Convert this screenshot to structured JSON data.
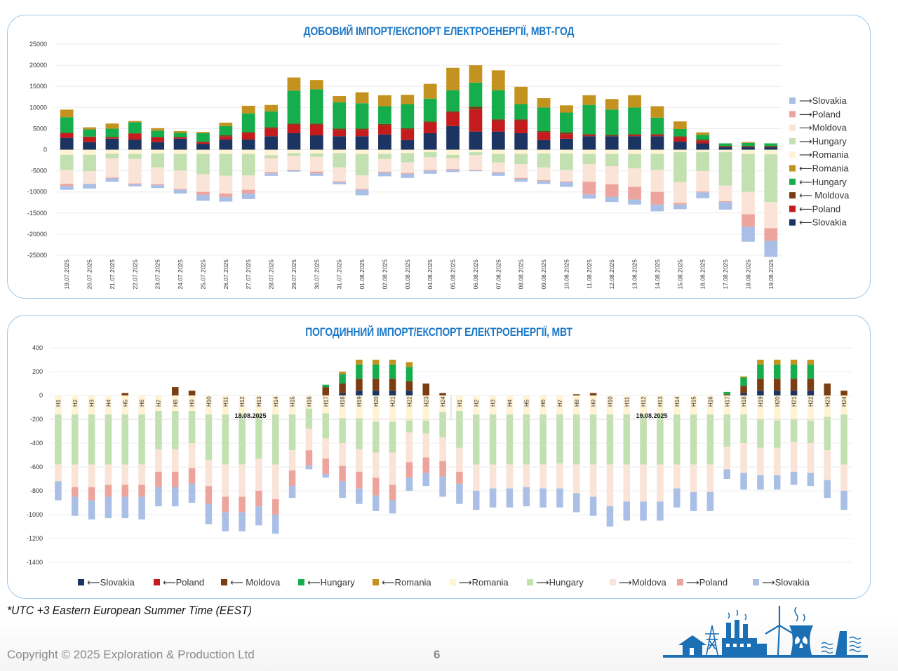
{
  "series_colors": {
    "to_slovakia": "#a9bfe6",
    "to_poland": "#eda49c",
    "to_moldova": "#fae3d7",
    "to_hungary": "#c2e0b0",
    "to_romania": "#fff3d4",
    "from_romania": "#c4921e",
    "from_hungary": "#16ad4d",
    "from_moldova": "#7b3d12",
    "from_poland": "#c41c1c",
    "from_slovakia": "#1b3461"
  },
  "chart_data": [
    {
      "type": "bar",
      "stacked": true,
      "title": "ДОБОВИЙ ІМПОРТ/ЕКСПОРТ ЕЛЕКТРОЕНЕРГІЇ, МВТ-ГОД",
      "ylim": [
        -25000,
        25000
      ],
      "yticks": [
        "25000",
        "20000",
        "15000",
        "10000",
        "5000",
        "0",
        "-5000",
        "-10000",
        "-15000",
        "-20000",
        "-25000"
      ],
      "legend_position": "right",
      "categories": [
        "19.07.2025",
        "20.07.2025",
        "21.07.2025",
        "22.07.2025",
        "23.07.2025",
        "24.07.2025",
        "25.07.2025",
        "26.07.2025",
        "27.07.2025",
        "28.07.2025",
        "29.07.2025",
        "30.07.2025",
        "31.07.2025",
        "01.08.2025",
        "02.08.2025",
        "03.08.2025",
        "04.08.2025",
        "05.08.2025",
        "06.08.2025",
        "07.08.2025",
        "08.08.2025",
        "09.08.2025",
        "10.08.2025",
        "11.08.2025",
        "12.08.2025",
        "13.08.2025",
        "14.08.2025",
        "15.08.2025",
        "16.08.2025",
        "17.08.2025",
        "18.08.2025",
        "19.08.2025"
      ],
      "legend": [
        "⟶Slovakia",
        "⟶Poland",
        "⟶Moldova",
        "⟶Hungary",
        "⟶Romania",
        "⟵Romania",
        "⟵Hungary",
        "⟵ Moldova",
        "⟵Poland",
        "⟵Slovakia"
      ],
      "series": [
        {
          "name": "⟵Slovakia",
          "key": "from_slovakia",
          "values": [
            2800,
            1800,
            2600,
            2400,
            1800,
            2600,
            1400,
            2400,
            2400,
            3200,
            3900,
            3400,
            3200,
            3200,
            3600,
            2300,
            3900,
            5600,
            4300,
            4300,
            3900,
            2300,
            2600,
            3200,
            3200,
            3200,
            3200,
            1900,
            1500,
            600,
            600,
            600
          ]
        },
        {
          "name": "⟵Poland",
          "key": "from_poland",
          "values": [
            1100,
            1200,
            300,
            1400,
            1100,
            300,
            400,
            700,
            1500,
            1800,
            2000,
            2500,
            1500,
            1500,
            2200,
            2500,
            2500,
            3200,
            5200,
            2600,
            3000,
            1800,
            1100,
            200,
            0,
            200,
            200,
            1000,
            600,
            0,
            0,
            0
          ]
        },
        {
          "name": "⟵ Moldova",
          "key": "from_moldova",
          "values": [
            100,
            100,
            100,
            100,
            100,
            100,
            100,
            300,
            300,
            300,
            300,
            300,
            300,
            300,
            300,
            300,
            300,
            300,
            700,
            300,
            300,
            300,
            400,
            300,
            300,
            300,
            300,
            300,
            300,
            300,
            300,
            300
          ]
        },
        {
          "name": "⟵Hungary",
          "key": "from_hungary",
          "values": [
            3700,
            1700,
            2000,
            2600,
            1500,
            1000,
            2000,
            2200,
            4400,
            3800,
            7800,
            8100,
            6200,
            6000,
            4200,
            5700,
            5400,
            5000,
            5700,
            6900,
            3600,
            5600,
            4700,
            6900,
            6000,
            6300,
            3900,
            1700,
            1100,
            600,
            700,
            600
          ]
        },
        {
          "name": "⟵Romania",
          "key": "from_romania",
          "values": [
            1800,
            500,
            1200,
            300,
            600,
            400,
            300,
            800,
            1800,
            1500,
            3100,
            2200,
            1500,
            2600,
            2600,
            2200,
            3500,
            5300,
            4100,
            4700,
            4100,
            2200,
            1700,
            2300,
            2500,
            2900,
            2700,
            1800,
            600,
            0,
            200,
            0
          ]
        },
        {
          "name": "⟶Romania",
          "key": "to_romania",
          "values": [
            -1200,
            -1200,
            -1000,
            -1000,
            -900,
            -1000,
            -1000,
            -1000,
            -1000,
            -1300,
            -800,
            -900,
            -800,
            -1000,
            -1000,
            -800,
            -600,
            -1200,
            -600,
            -1000,
            -1000,
            -900,
            -900,
            -1000,
            -1000,
            -1000,
            -1000,
            -600,
            -600,
            -600,
            -1000,
            -1100
          ]
        },
        {
          "name": "⟶Hungary",
          "key": "to_hungary",
          "values": [
            -3600,
            -3900,
            -1000,
            -1200,
            -3300,
            -3900,
            -4800,
            -5200,
            -5100,
            -700,
            -700,
            -800,
            -3400,
            -5100,
            -1200,
            -2200,
            -1200,
            -800,
            -700,
            -2000,
            -2400,
            -3300,
            -3900,
            -2400,
            -2900,
            -3400,
            -3800,
            -7100,
            -4500,
            -7900,
            -9000,
            -11300
          ]
        },
        {
          "name": "⟶Moldova",
          "key": "to_moldova",
          "values": [
            -3300,
            -3000,
            -4600,
            -5800,
            -4000,
            -4400,
            -4200,
            -4200,
            -3400,
            -3300,
            -3300,
            -3500,
            -3300,
            -3200,
            -3000,
            -2500,
            -3000,
            -2600,
            -3500,
            -2300,
            -3300,
            -3000,
            -2700,
            -4200,
            -4300,
            -4400,
            -5200,
            -4900,
            -4800,
            -3700,
            -5300,
            -6200
          ]
        },
        {
          "name": "⟶Poland",
          "key": "to_poland",
          "values": [
            -500,
            0,
            -200,
            -200,
            -200,
            -200,
            -700,
            -800,
            -900,
            -300,
            -100,
            -400,
            -200,
            -200,
            -200,
            -200,
            -200,
            -200,
            -100,
            -200,
            -200,
            -200,
            -200,
            -3000,
            -3000,
            -3000,
            -3000,
            -400,
            -200,
            -200,
            -3000,
            -3000
          ]
        },
        {
          "name": "⟶Slovakia",
          "key": "to_slovakia",
          "values": [
            -900,
            -1100,
            -800,
            -500,
            -700,
            -900,
            -1400,
            -1100,
            -1300,
            -600,
            -300,
            -600,
            -500,
            -1300,
            -900,
            -1000,
            -700,
            -500,
            -200,
            -700,
            -700,
            -700,
            -1100,
            -1000,
            -1200,
            -1200,
            -1600,
            -1100,
            -1400,
            -1800,
            -3500,
            -3800
          ]
        }
      ]
    },
    {
      "type": "bar",
      "stacked": true,
      "title": "ПОГОДИННИЙ ІМПОРТ/ЕКСПОРТ ЕЛЕКТРОЕНЕРГІЇ, МВТ",
      "ylim": [
        -1400,
        400
      ],
      "yticks": [
        "400",
        "200",
        "0",
        "-200",
        "-400",
        "-600",
        "-800",
        "-1000",
        "-1200",
        "-1400"
      ],
      "legend_position": "bottom",
      "date_labels": [
        "18.08.2025",
        "19.08.2025"
      ],
      "categories": [
        "H1",
        "H2",
        "H3",
        "H4",
        "H5",
        "H6",
        "H7",
        "H8",
        "H9",
        "H10",
        "H11",
        "H12",
        "H13",
        "H14",
        "H15",
        "H16",
        "H17",
        "H18",
        "H19",
        "H20",
        "H21",
        "H22",
        "H23",
        "H24",
        "H1",
        "H2",
        "H3",
        "H4",
        "H5",
        "H6",
        "H7",
        "H8",
        "H9",
        "H10",
        "H11",
        "H12",
        "H13",
        "H14",
        "H15",
        "H16",
        "H17",
        "H18",
        "H19",
        "H20",
        "H21",
        "H22",
        "H23",
        "H24"
      ],
      "legend": [
        "⟵Slovakia",
        "⟵Poland",
        "⟵ Moldova",
        "⟵Hungary",
        "⟵Romania",
        "⟶Romania",
        "⟶Hungary",
        "⟶Moldova",
        "⟶Poland",
        "⟶Slovakia"
      ],
      "series": [
        {
          "name": "⟵Slovakia",
          "key": "from_slovakia",
          "values": [
            0,
            0,
            0,
            0,
            0,
            0,
            0,
            0,
            0,
            0,
            0,
            0,
            0,
            0,
            0,
            0,
            0,
            20,
            40,
            40,
            40,
            40,
            0,
            0,
            0,
            0,
            0,
            0,
            0,
            0,
            0,
            0,
            0,
            0,
            0,
            0,
            0,
            0,
            0,
            0,
            0,
            20,
            40,
            40,
            40,
            40,
            0,
            0
          ]
        },
        {
          "name": "⟵Poland",
          "key": "from_poland",
          "values": [
            0,
            0,
            0,
            0,
            0,
            0,
            0,
            0,
            0,
            0,
            0,
            0,
            0,
            0,
            0,
            0,
            0,
            0,
            0,
            0,
            0,
            0,
            0,
            0,
            0,
            0,
            0,
            0,
            0,
            0,
            0,
            0,
            0,
            0,
            0,
            0,
            0,
            0,
            0,
            0,
            0,
            0,
            0,
            0,
            0,
            0,
            0,
            0
          ]
        },
        {
          "name": "⟵ Moldova",
          "key": "from_moldova",
          "values": [
            0,
            0,
            0,
            0,
            20,
            0,
            0,
            70,
            40,
            0,
            0,
            0,
            0,
            0,
            0,
            0,
            70,
            80,
            100,
            100,
            100,
            80,
            100,
            20,
            0,
            0,
            0,
            0,
            0,
            0,
            0,
            10,
            20,
            0,
            0,
            0,
            0,
            0,
            0,
            0,
            10,
            60,
            100,
            100,
            100,
            100,
            100,
            40
          ]
        },
        {
          "name": "⟵Hungary",
          "key": "from_hungary",
          "values": [
            0,
            0,
            0,
            0,
            0,
            0,
            0,
            0,
            0,
            0,
            0,
            0,
            0,
            0,
            0,
            0,
            20,
            80,
            120,
            120,
            120,
            120,
            0,
            0,
            0,
            0,
            0,
            0,
            0,
            0,
            0,
            0,
            0,
            0,
            0,
            0,
            0,
            0,
            0,
            0,
            20,
            70,
            120,
            120,
            120,
            120,
            0,
            0
          ]
        },
        {
          "name": "⟵Romania",
          "key": "from_romania",
          "values": [
            0,
            0,
            0,
            0,
            0,
            0,
            0,
            0,
            0,
            0,
            0,
            0,
            0,
            0,
            0,
            0,
            0,
            20,
            40,
            40,
            40,
            40,
            0,
            0,
            0,
            0,
            0,
            0,
            0,
            0,
            0,
            0,
            0,
            0,
            0,
            0,
            0,
            0,
            0,
            0,
            0,
            10,
            40,
            40,
            40,
            40,
            0,
            0
          ]
        },
        {
          "name": "⟶Romania",
          "key": "to_romania",
          "values": [
            -160,
            -160,
            -160,
            -160,
            -160,
            -160,
            -130,
            -130,
            -130,
            -160,
            -160,
            -160,
            -160,
            -160,
            -160,
            -110,
            -150,
            -190,
            -190,
            -220,
            -220,
            -210,
            -210,
            -140,
            -130,
            -160,
            -160,
            -160,
            -160,
            -160,
            -160,
            -160,
            -160,
            -160,
            -160,
            -160,
            -160,
            -160,
            -160,
            -160,
            -160,
            -160,
            -200,
            -210,
            -200,
            -210,
            -180,
            -160
          ]
        },
        {
          "name": "⟶Hungary",
          "key": "to_hungary",
          "values": [
            -420,
            -420,
            -420,
            -420,
            -420,
            -420,
            -320,
            -320,
            -270,
            -380,
            -420,
            -420,
            -370,
            -420,
            -300,
            -170,
            -210,
            -210,
            -260,
            -260,
            -260,
            -100,
            -110,
            -210,
            -310,
            -420,
            -420,
            -420,
            -420,
            -420,
            -410,
            -420,
            -420,
            -420,
            -420,
            -420,
            -420,
            -420,
            -420,
            -420,
            -270,
            -240,
            -240,
            -230,
            -190,
            -190,
            -280,
            -420
          ]
        },
        {
          "name": "⟶Moldova",
          "key": "to_moldova",
          "values": [
            -140,
            -190,
            -190,
            -170,
            -170,
            -170,
            -190,
            -190,
            -210,
            -220,
            -270,
            -270,
            -270,
            -290,
            -170,
            -180,
            -170,
            -190,
            -190,
            -210,
            -270,
            -250,
            -200,
            -200,
            -200,
            -220,
            -200,
            -200,
            -190,
            -200,
            -210,
            -240,
            -270,
            -350,
            -310,
            -310,
            -310,
            -200,
            -230,
            -230,
            -190,
            -250,
            -230,
            -230,
            -250,
            -250,
            -250,
            -220
          ]
        },
        {
          "name": "⟶Poland",
          "key": "to_poland",
          "values": [
            0,
            -80,
            -110,
            -100,
            -100,
            -100,
            -130,
            -130,
            -130,
            -150,
            -130,
            -130,
            -130,
            -130,
            -130,
            -130,
            -130,
            -130,
            -140,
            -150,
            -130,
            -130,
            -130,
            -130,
            -100,
            0,
            0,
            0,
            0,
            0,
            0,
            0,
            0,
            0,
            0,
            0,
            0,
            0,
            0,
            0,
            0,
            0,
            0,
            0,
            0,
            0,
            0,
            0
          ]
        },
        {
          "name": "⟶Slovakia",
          "key": "to_slovakia",
          "values": [
            -160,
            -160,
            -160,
            -180,
            -180,
            -190,
            -160,
            -160,
            -160,
            -170,
            -160,
            -160,
            -160,
            -160,
            -100,
            -30,
            -30,
            -140,
            -130,
            -130,
            -110,
            -110,
            -110,
            -170,
            -170,
            -160,
            -160,
            -160,
            -160,
            -160,
            -160,
            -160,
            -160,
            -170,
            -160,
            -160,
            -160,
            -160,
            -160,
            -160,
            -80,
            -140,
            -120,
            -120,
            -110,
            -110,
            -150,
            -160
          ]
        }
      ]
    }
  ],
  "footnote": "*UTC +3 Eastern European Summer Time (EEST)",
  "copyright": "Copyright © 2025 Exploration & Production Ltd",
  "page_number": "6",
  "logo_icon": "energy-infrastructure-icon"
}
